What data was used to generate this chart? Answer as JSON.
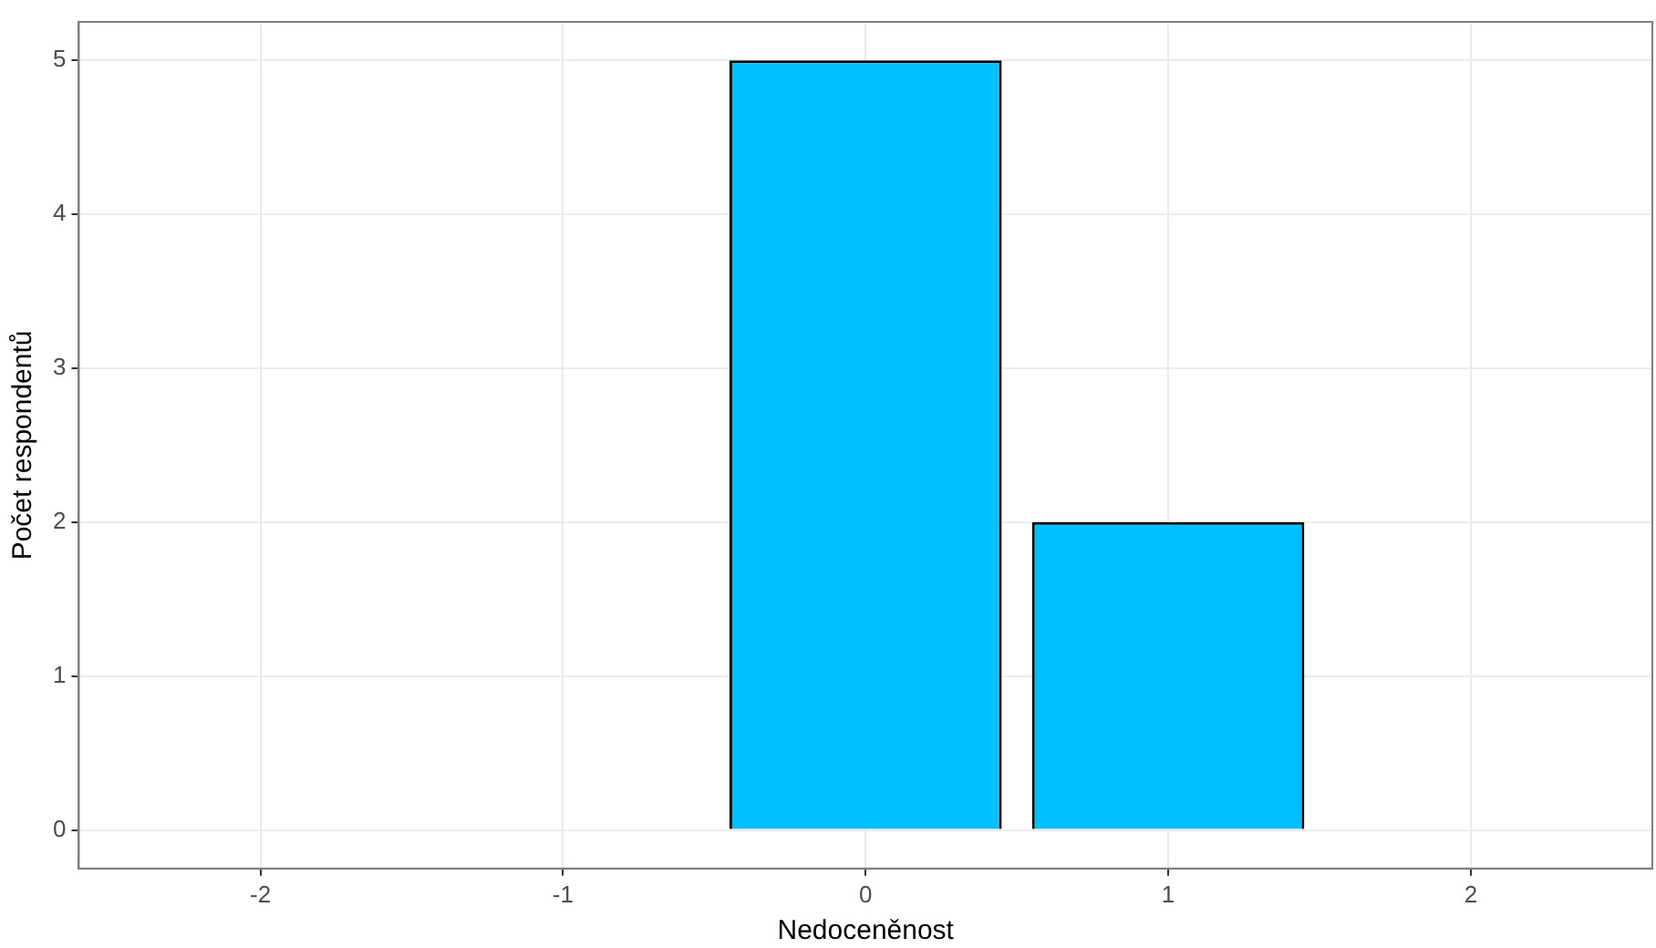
{
  "chart_data": {
    "type": "bar",
    "xlabel": "Nedoceněnost",
    "ylabel": "Počet respondentů",
    "x": [
      0,
      1
    ],
    "values": [
      5,
      2
    ],
    "color": "#00bfff",
    "xlim": [
      -2.6,
      2.6
    ],
    "xticks": [
      -2,
      -1,
      0,
      1,
      2
    ],
    "ylim": [
      -0.25,
      5.25
    ],
    "yticks": [
      0,
      1,
      2,
      3,
      4,
      5
    ],
    "grid": true,
    "legend": false
  }
}
